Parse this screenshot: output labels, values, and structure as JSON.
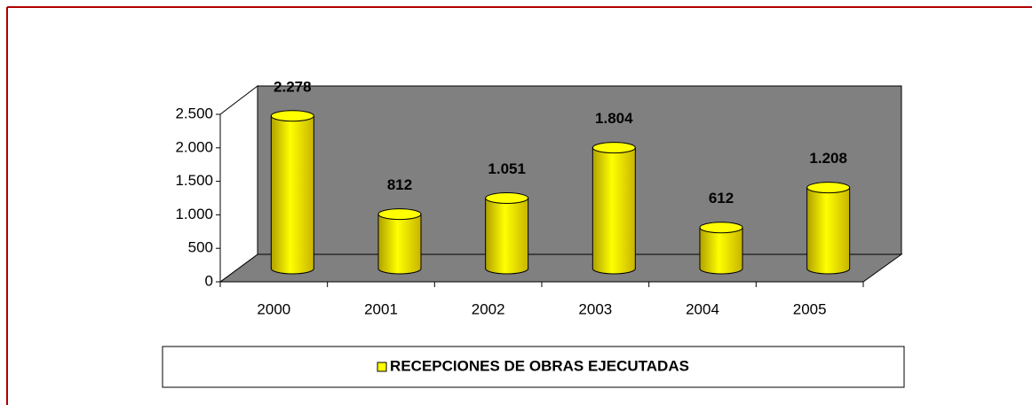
{
  "chart_data": {
    "type": "bar3d",
    "categories": [
      "2000",
      "2001",
      "2002",
      "2003",
      "2004",
      "2005"
    ],
    "series": [
      {
        "name": "RECEPCIONES DE OBRAS EJECUTADAS",
        "color": "#ffff00",
        "values": [
          2278,
          812,
          1051,
          1804,
          612,
          1208
        ],
        "value_labels": [
          "2.278",
          "812",
          "1.051",
          "1.804",
          "612",
          "1.208"
        ]
      }
    ],
    "ylim": [
      0,
      2500
    ],
    "yticks": [
      0,
      500,
      {
        "value": 1000,
        "label": "1.000"
      },
      {
        "value": 1500,
        "label": "1.500"
      },
      {
        "value": 2000,
        "label": "2.000"
      },
      {
        "value": 2500,
        "label": "2.500"
      }
    ],
    "legend": "bottom"
  }
}
